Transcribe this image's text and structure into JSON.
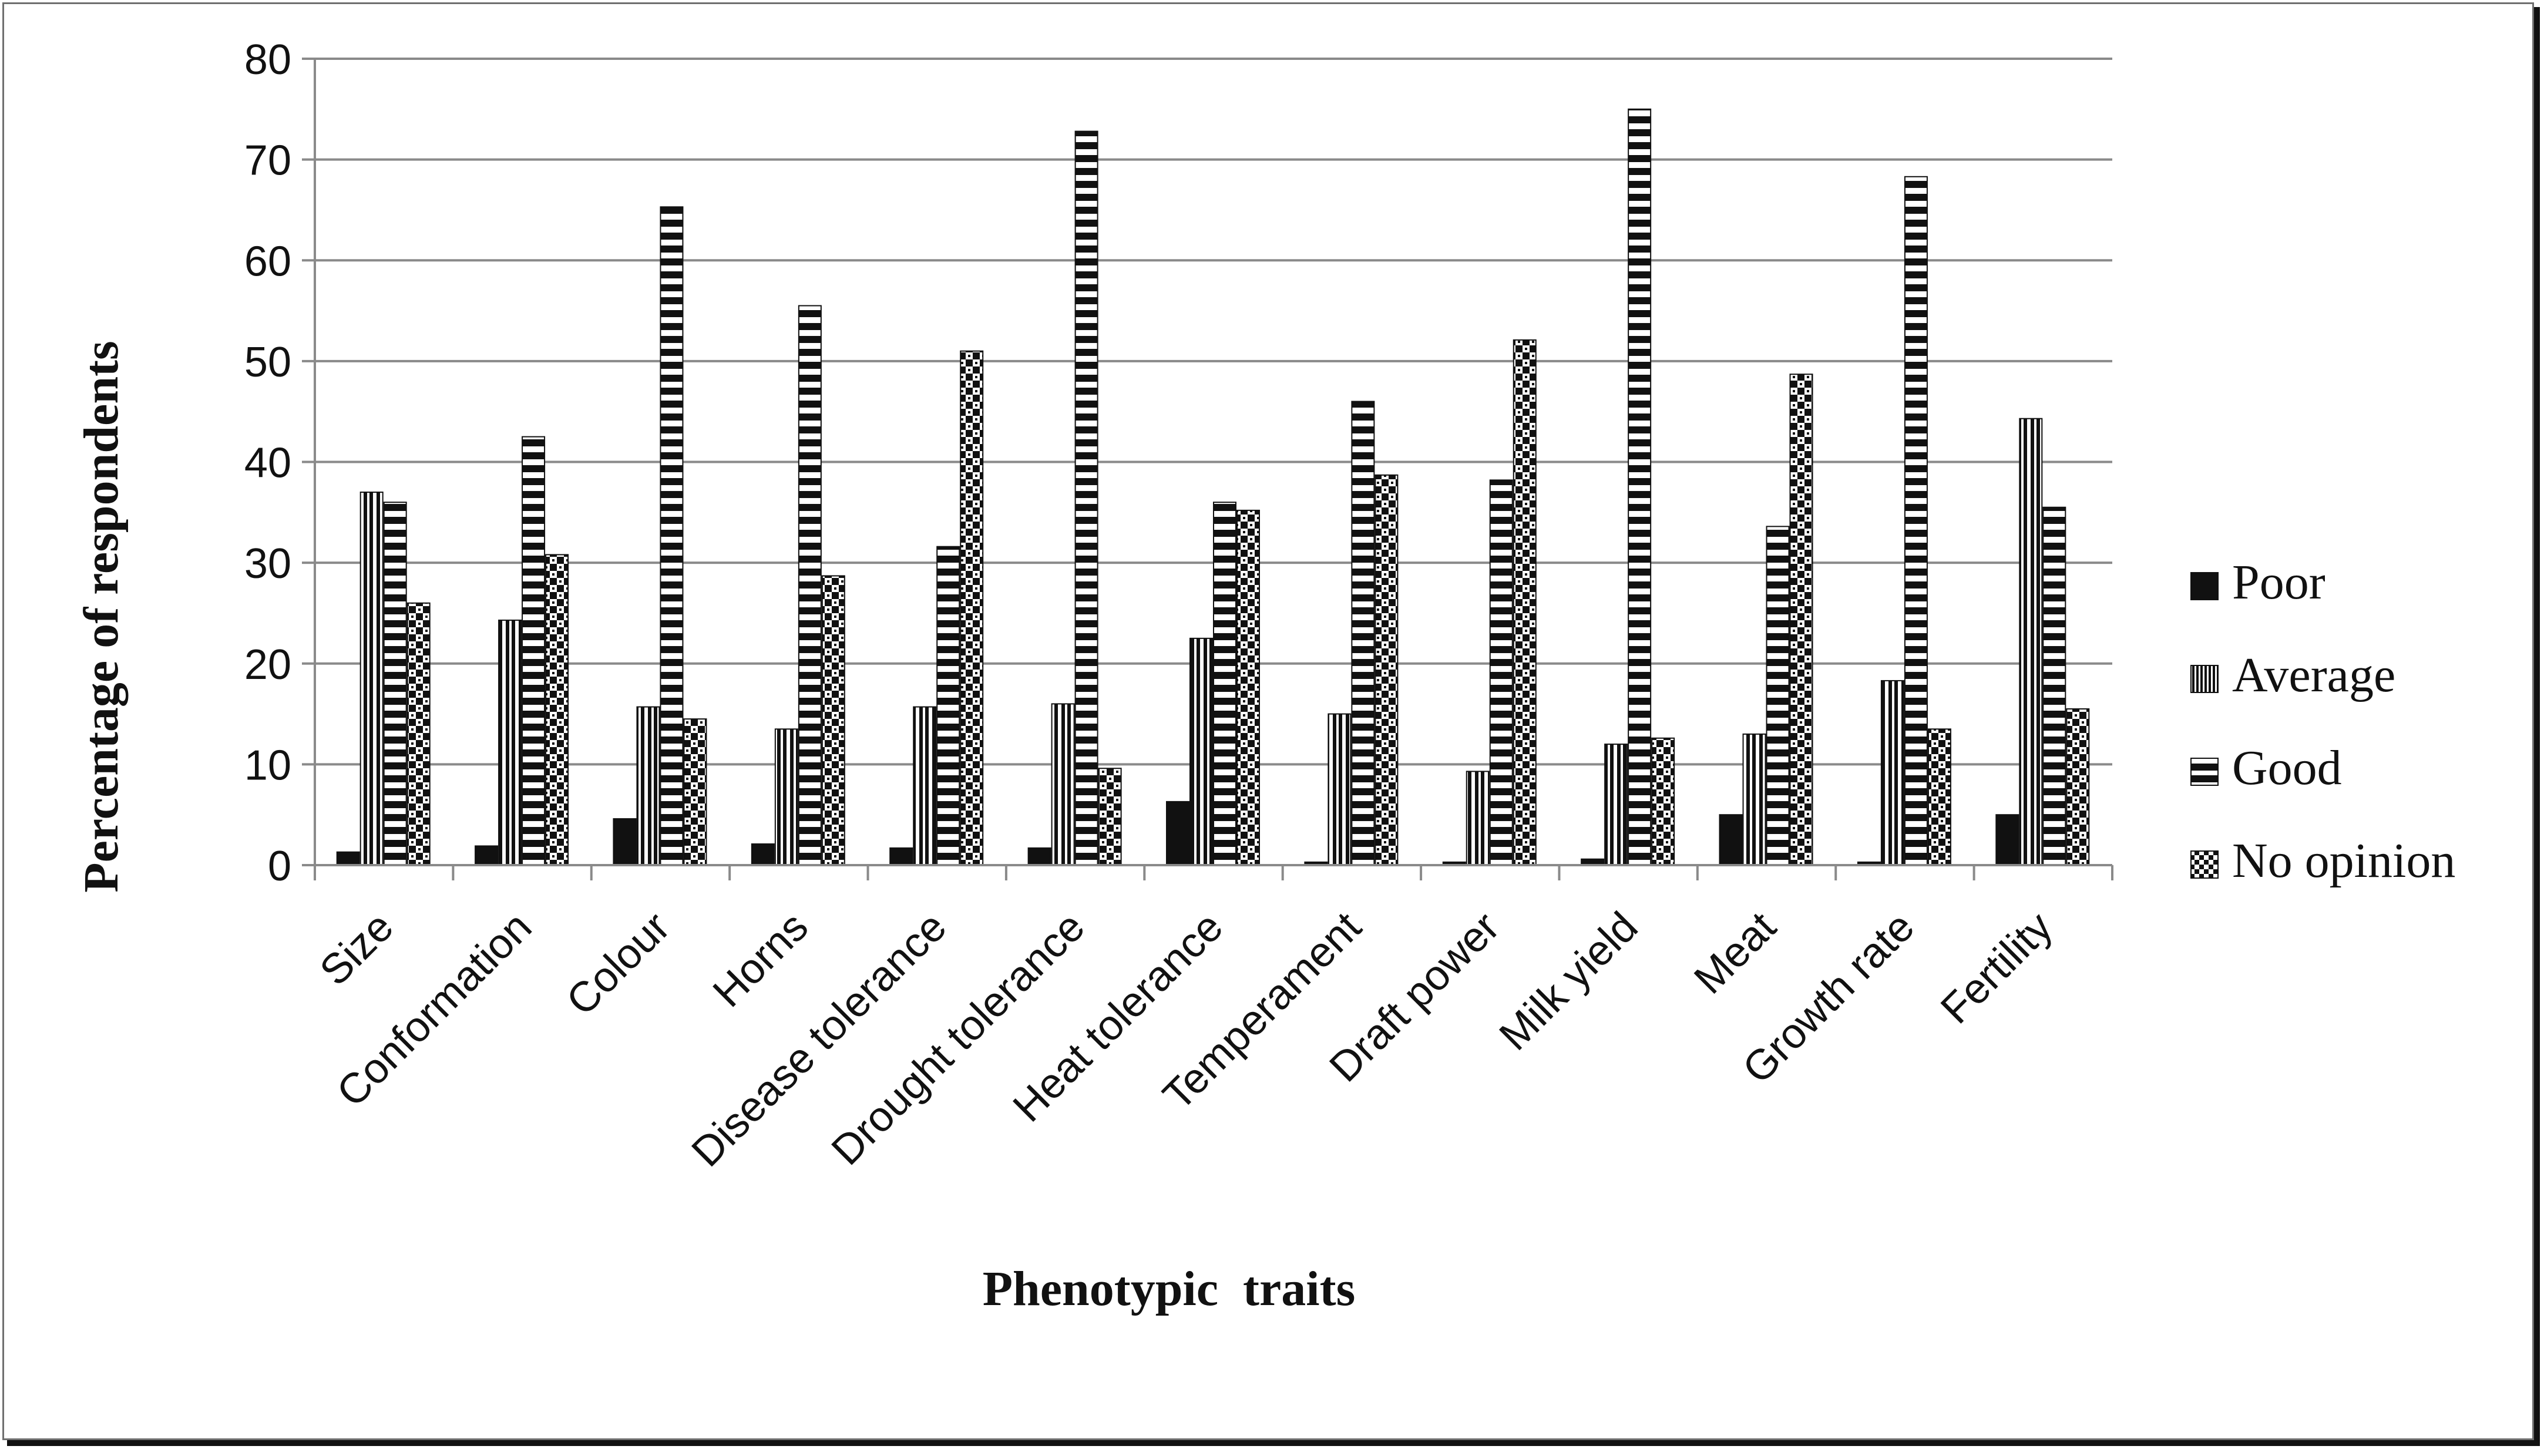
{
  "chart_data": {
    "type": "bar",
    "title": "",
    "xlabel": "Phenotypic  traits",
    "ylabel": "Percentage of respondents",
    "ylim": [
      0,
      80
    ],
    "yticks": [
      0,
      10,
      20,
      30,
      40,
      50,
      60,
      70,
      80
    ],
    "grid": true,
    "legend_position": "right",
    "categories": [
      "Size",
      "Conformation",
      "Colour",
      "Horns",
      "Disease tolerance",
      "Drought tolerance",
      "Heat tolerance",
      "Temperament",
      "Draft power",
      "Milk yield",
      "Meat",
      "Growth rate",
      "Fertility"
    ],
    "series": [
      {
        "name": "Poor",
        "pattern": "solid",
        "values": [
          1.3,
          1.9,
          4.6,
          2.1,
          1.7,
          1.7,
          6.3,
          0.3,
          0.3,
          0.6,
          5.0,
          0.3,
          5.0
        ]
      },
      {
        "name": "Average",
        "pattern": "vertical",
        "values": [
          37.0,
          24.3,
          15.7,
          13.5,
          15.7,
          16.0,
          22.5,
          15.0,
          9.3,
          12.0,
          13.0,
          18.3,
          44.3
        ]
      },
      {
        "name": "Good",
        "pattern": "horizontal",
        "values": [
          36.0,
          42.5,
          65.3,
          55.5,
          31.6,
          72.8,
          36.0,
          46.0,
          38.2,
          75.0,
          33.6,
          68.3,
          35.5
        ]
      },
      {
        "name": "No opinion",
        "pattern": "checker",
        "values": [
          26.0,
          30.8,
          14.5,
          28.7,
          51.0,
          9.6,
          35.2,
          38.7,
          52.1,
          12.6,
          48.7,
          13.5,
          15.5
        ]
      }
    ]
  }
}
